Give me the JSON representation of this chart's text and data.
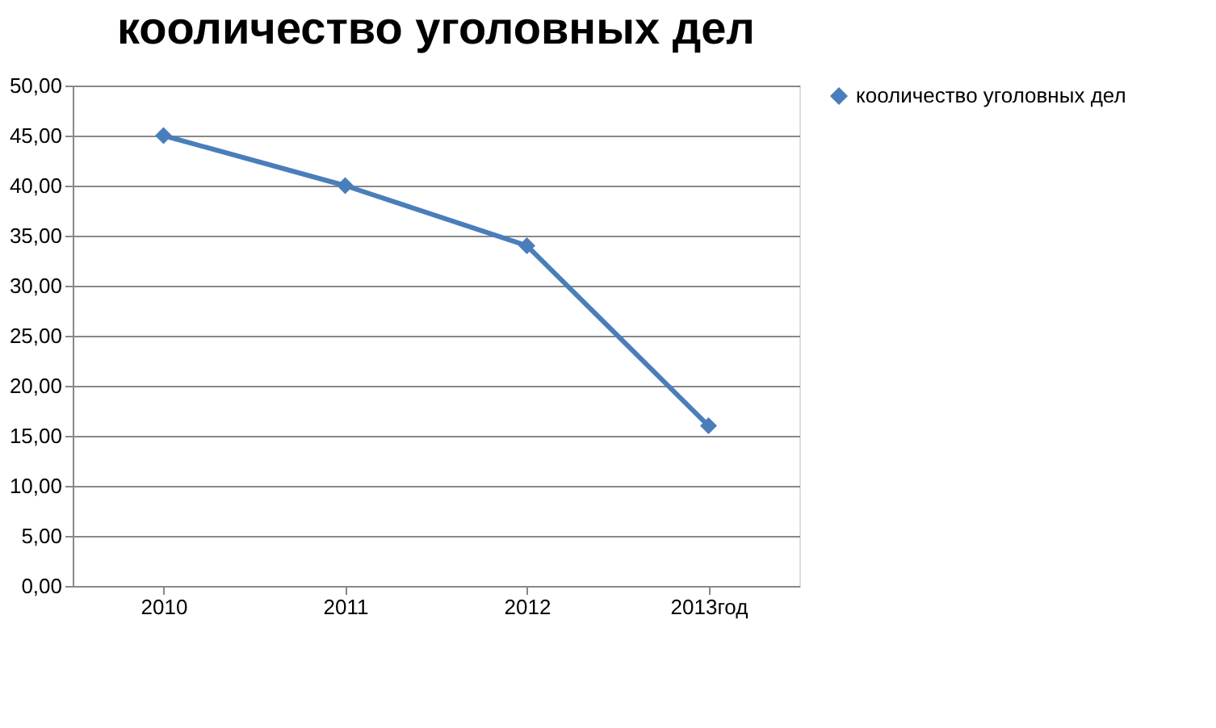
{
  "chart_data": {
    "type": "line",
    "title": "кооличество уголовных дел",
    "categories": [
      "2010",
      "2011",
      "2012",
      "2013год"
    ],
    "series": [
      {
        "name": "кооличество уголовных дел",
        "color": "#4a7ebb",
        "values": [
          45,
          40,
          34,
          16
        ]
      }
    ],
    "ylim": [
      0,
      50
    ],
    "yticks": [
      {
        "value": 0,
        "label": "0,00"
      },
      {
        "value": 5,
        "label": "5,00"
      },
      {
        "value": 10,
        "label": "10,00"
      },
      {
        "value": 15,
        "label": "15,00"
      },
      {
        "value": 20,
        "label": "20,00"
      },
      {
        "value": 25,
        "label": "25,00"
      },
      {
        "value": 30,
        "label": "30,00"
      },
      {
        "value": 35,
        "label": "35,00"
      },
      {
        "value": 40,
        "label": "40,00"
      },
      {
        "value": 45,
        "label": "45,00"
      },
      {
        "value": 50,
        "label": "50,00"
      }
    ],
    "grid": "y",
    "legend": "right",
    "marker": "diamond",
    "line_style": "solid"
  }
}
